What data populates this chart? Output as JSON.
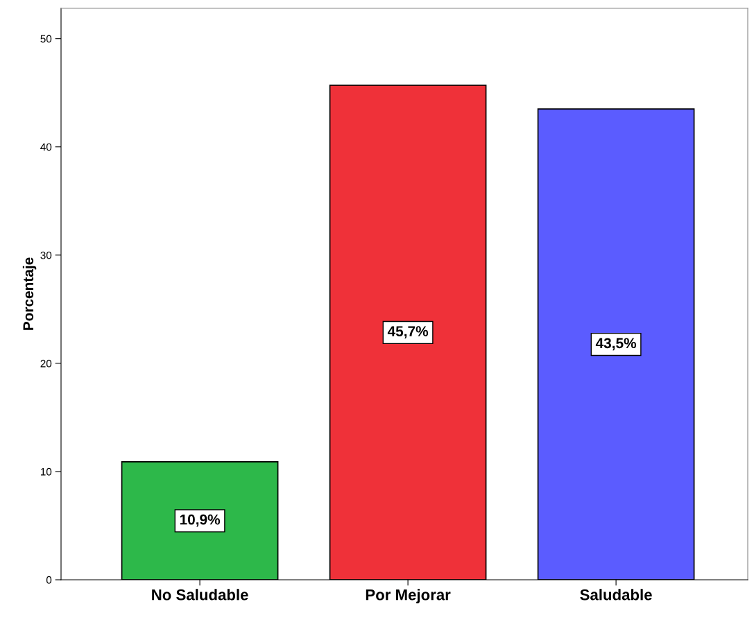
{
  "chart_data": {
    "type": "bar",
    "ylabel": "Porcentaje",
    "categories": [
      "No Saludable",
      "Por Mejorar",
      "Saludable"
    ],
    "values": [
      10.9,
      45.7,
      43.5
    ],
    "colors": [
      "#2db84a",
      "#ef3139",
      "#5b5cff"
    ],
    "value_labels": [
      "10,9%",
      "45,7%",
      "43,5%"
    ],
    "ylim": [
      0,
      52.8
    ],
    "yticks": [
      0,
      10,
      20,
      30,
      40,
      50
    ],
    "grid": false,
    "legend": false
  }
}
